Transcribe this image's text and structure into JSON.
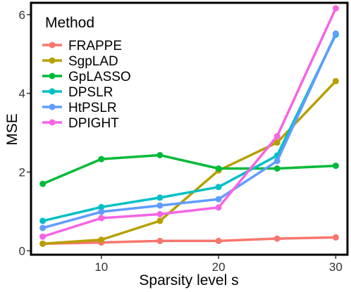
{
  "chart_data": {
    "type": "line",
    "xlabel": "Sparsity level s",
    "ylabel": "MSE",
    "xlim": [
      4,
      31
    ],
    "ylim": [
      -0.1,
      6.3
    ],
    "xticks": [
      10,
      20,
      30
    ],
    "yticks": [
      0,
      2,
      4,
      6
    ],
    "x": [
      5,
      10,
      15,
      20,
      25,
      30
    ],
    "grid": false,
    "legend": {
      "title": "Method",
      "placement": "top-left"
    },
    "series": [
      {
        "name": "FRAPPE",
        "color": "#F8766D",
        "values": [
          0.18,
          0.21,
          0.25,
          0.25,
          0.31,
          0.34
        ]
      },
      {
        "name": "SgpLAD",
        "color": "#B79F00",
        "values": [
          0.18,
          0.28,
          0.76,
          2.04,
          2.75,
          4.31
        ]
      },
      {
        "name": "GpLASSO",
        "color": "#00BA38",
        "values": [
          1.7,
          2.33,
          2.43,
          2.09,
          2.09,
          2.16
        ]
      },
      {
        "name": "DPSLR",
        "color": "#00BFC4",
        "values": [
          0.76,
          1.11,
          1.35,
          1.62,
          2.42,
          5.49
        ]
      },
      {
        "name": "HtPSLR",
        "color": "#619CFF",
        "values": [
          0.58,
          0.99,
          1.15,
          1.31,
          2.28,
          5.52
        ]
      },
      {
        "name": "DPIGHT",
        "color": "#F564E3",
        "values": [
          0.36,
          0.83,
          0.93,
          1.1,
          2.91,
          6.16
        ]
      }
    ]
  }
}
